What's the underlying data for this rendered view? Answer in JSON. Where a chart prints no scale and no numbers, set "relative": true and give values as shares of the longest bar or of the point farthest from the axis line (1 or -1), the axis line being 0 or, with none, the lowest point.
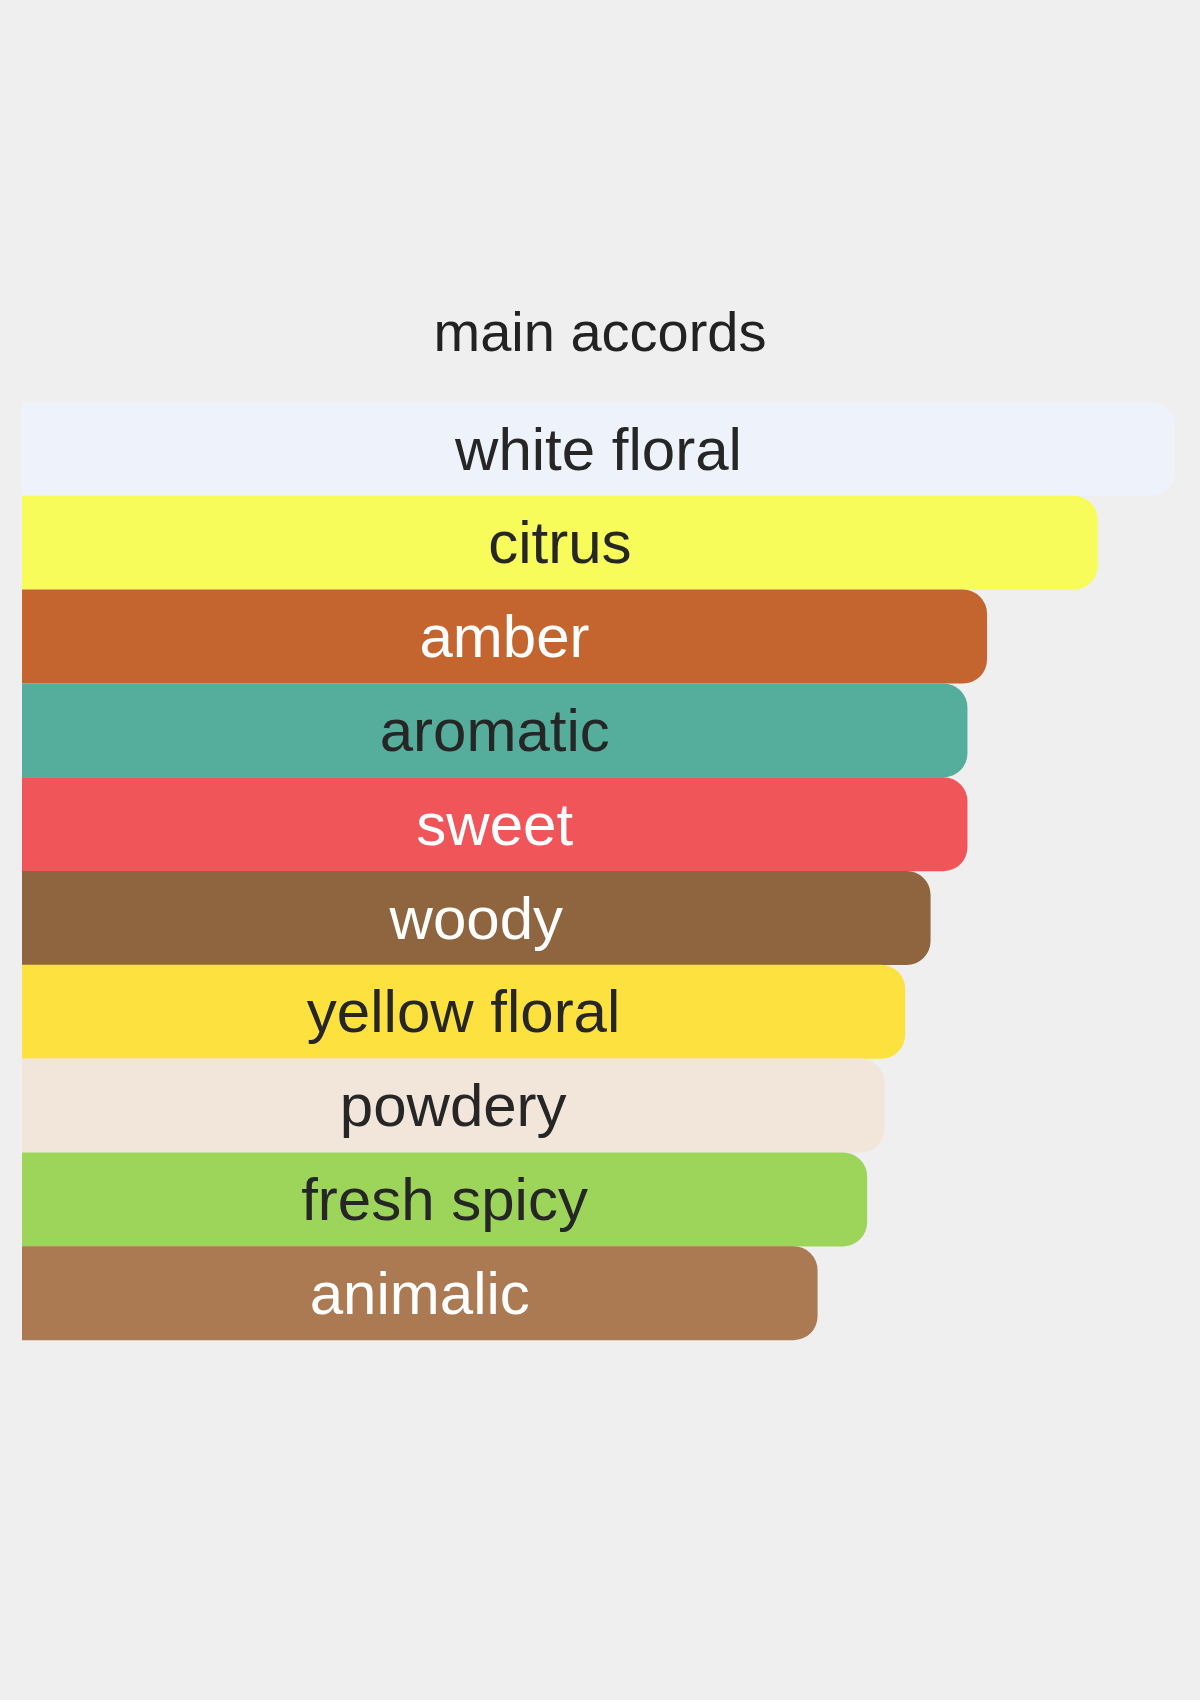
{
  "chart_data": {
    "type": "bar",
    "orientation": "horizontal",
    "relative": true,
    "title": "main accords",
    "categories": [
      "white floral",
      "citrus",
      "amber",
      "aromatic",
      "sweet",
      "woody",
      "yellow floral",
      "powdery",
      "fresh spicy",
      "animalic"
    ],
    "values": [
      1,
      0.933,
      0.837,
      0.82,
      0.82,
      0.788,
      0.766,
      0.748,
      0.733,
      0.69
    ],
    "colors": [
      "#edf2fb",
      "#f8fc5a",
      "#c4652f",
      "#55ae9b",
      "#f0555a",
      "#8e653e",
      "#fde13f",
      "#f2e5da",
      "#9dd55a",
      "#ac7a52"
    ]
  }
}
